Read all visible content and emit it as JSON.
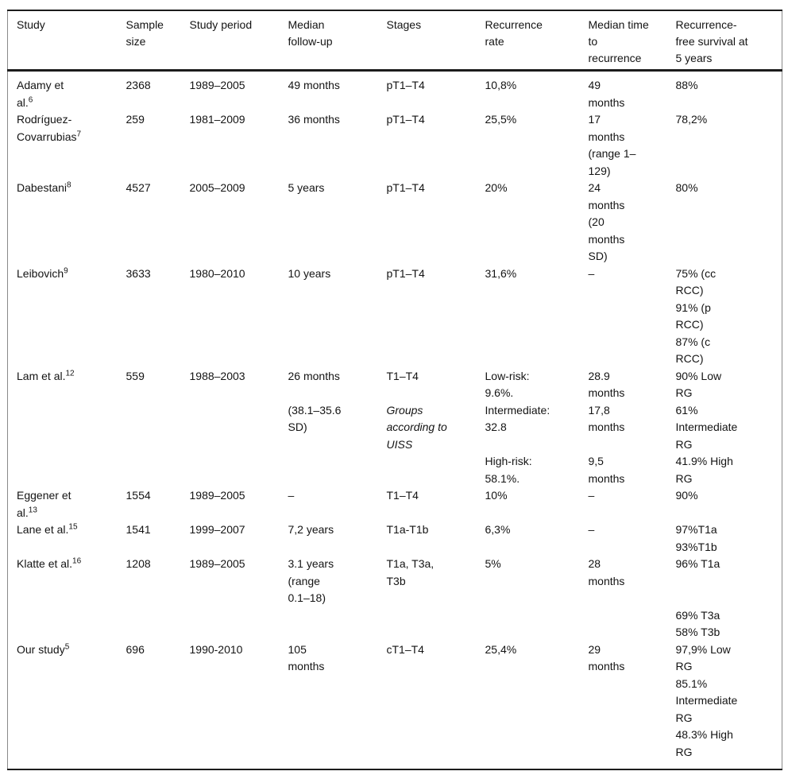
{
  "colors": {
    "background": "#ffffff",
    "text": "#141414",
    "rule": "#1c1c1c",
    "side_rule": "#8a8a8a"
  },
  "table": {
    "columns": [
      {
        "key": "study",
        "label": "Study"
      },
      {
        "key": "sample_size",
        "label": "Sample\nsize"
      },
      {
        "key": "study_period",
        "label": "Study period"
      },
      {
        "key": "median_followup",
        "label": "Median\nfollow-up"
      },
      {
        "key": "stages",
        "label": "Stages"
      },
      {
        "key": "recurrence_rate",
        "label": "Recurrence\nrate"
      },
      {
        "key": "median_time_to_recurrence",
        "label": "Median time\nto\nrecurrence"
      },
      {
        "key": "recurrence_free_survival",
        "label": "Recurrence-\nfree survival at\n5 years"
      }
    ],
    "rows": [
      {
        "subrows": [
          [
            {
              "text": "Adamy et\nal.",
              "ref": "6"
            },
            {
              "text": "2368"
            },
            {
              "text": "1989–2005"
            },
            {
              "text": "49 months"
            },
            {
              "text": "pT1–T4"
            },
            {
              "text": "10,8%"
            },
            {
              "text": "49\nmonths"
            },
            {
              "text": "88%"
            }
          ]
        ]
      },
      {
        "subrows": [
          [
            {
              "text": "Rodríguez-\nCovarrubias",
              "ref": "7"
            },
            {
              "text": "259"
            },
            {
              "text": "1981–2009"
            },
            {
              "text": "36 months"
            },
            {
              "text": "pT1–T4"
            },
            {
              "text": "25,5%"
            },
            {
              "text": "17\nmonths\n(range 1–\n129)"
            },
            {
              "text": "78,2%"
            }
          ]
        ]
      },
      {
        "subrows": [
          [
            {
              "text": "Dabestani",
              "ref": "8"
            },
            {
              "text": "4527"
            },
            {
              "text": "2005–2009"
            },
            {
              "text": "5 years"
            },
            {
              "text": "pT1–T4"
            },
            {
              "text": "20%"
            },
            {
              "text": "24\nmonths\n(20\nmonths\nSD)"
            },
            {
              "text": "80%"
            }
          ]
        ]
      },
      {
        "subrows": [
          [
            {
              "text": "Leibovich",
              "ref": "9"
            },
            {
              "text": "3633"
            },
            {
              "text": "1980–2010"
            },
            {
              "text": "10 years"
            },
            {
              "text": "pT1–T4"
            },
            {
              "text": "31,6%"
            },
            {
              "text": "–"
            },
            {
              "text": "75% (cc\nRCC)\n91% (p\nRCC)\n87% (c\nRCC)"
            }
          ]
        ]
      },
      {
        "subrows": [
          [
            {
              "text": "Lam et al.",
              "ref": "12"
            },
            {
              "text": "559"
            },
            {
              "text": "1988–2003"
            },
            {
              "text": "26 months"
            },
            {
              "text": "T1–T4"
            },
            {
              "text": "Low-risk:\n9.6%."
            },
            {
              "text": "28.9\nmonths"
            },
            {
              "text": "90% Low\nRG"
            }
          ],
          [
            null,
            null,
            null,
            {
              "text": "(38.1–35.6\nSD)"
            },
            {
              "text": "Groups\naccording to\nUISS",
              "italic": true
            },
            {
              "text": "Intermediate:\n32.8"
            },
            {
              "text": "17,8\nmonths"
            },
            {
              "text": "61%\nIntermediate\nRG"
            }
          ],
          [
            null,
            null,
            null,
            null,
            null,
            {
              "text": "High-risk:\n58.1%."
            },
            {
              "text": "9,5\nmonths"
            },
            {
              "text": "41.9% High\nRG"
            }
          ]
        ]
      },
      {
        "subrows": [
          [
            {
              "text": "Eggener et\nal.",
              "ref": "13"
            },
            {
              "text": "1554"
            },
            {
              "text": "1989–2005"
            },
            {
              "text": "–"
            },
            {
              "text": "T1–T4"
            },
            {
              "text": "10%"
            },
            {
              "text": "–"
            },
            {
              "text": "90%"
            }
          ]
        ]
      },
      {
        "subrows": [
          [
            {
              "text": "Lane et al.",
              "ref": "15"
            },
            {
              "text": "1541"
            },
            {
              "text": "1999–2007"
            },
            {
              "text": "7,2 years"
            },
            {
              "text": "T1a-T1b"
            },
            {
              "text": "6,3%"
            },
            {
              "text": "–"
            },
            {
              "text": "97%T1a\n93%T1b"
            }
          ]
        ]
      },
      {
        "subrows": [
          [
            {
              "text": "Klatte et al.",
              "ref": "16"
            },
            {
              "text": "1208"
            },
            {
              "text": "1989–2005"
            },
            {
              "text": "3.1 years\n(range\n0.1–18)"
            },
            {
              "text": "T1a, T3a,\nT3b"
            },
            {
              "text": "5%"
            },
            {
              "text": "28\nmonths"
            },
            {
              "text": "96% T1a"
            }
          ],
          [
            null,
            null,
            null,
            null,
            null,
            null,
            null,
            {
              "text": "69% T3a\n58% T3b"
            }
          ]
        ]
      },
      {
        "subrows": [
          [
            {
              "text": "Our study",
              "ref": "5"
            },
            {
              "text": "696"
            },
            {
              "text": "1990-2010"
            },
            {
              "text": "105\nmonths"
            },
            {
              "text": "cT1–T4"
            },
            {
              "text": "25,4%"
            },
            {
              "text": "29\nmonths"
            },
            {
              "text": "97,9% Low\nRG\n85.1%\nIntermediate\nRG\n48.3% High\nRG"
            }
          ]
        ]
      }
    ]
  }
}
